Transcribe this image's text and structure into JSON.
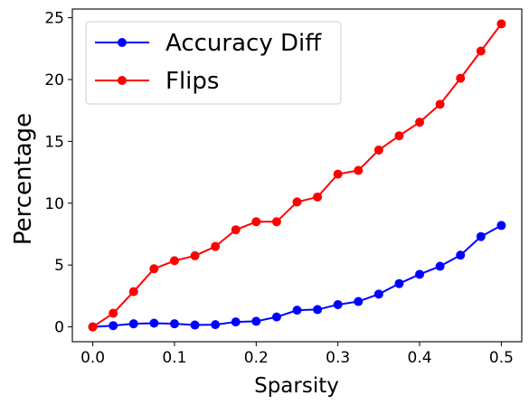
{
  "chart_data": {
    "type": "line",
    "xlabel": "Sparsity",
    "ylabel": "Percentage",
    "xlim": [
      -0.025,
      0.525
    ],
    "ylim": [
      -1.2,
      25.7
    ],
    "xticks": [
      0.0,
      0.1,
      0.2,
      0.3,
      0.4,
      0.5
    ],
    "xtick_labels": [
      "0.0",
      "0.1",
      "0.2",
      "0.3",
      "0.4",
      "0.5"
    ],
    "yticks": [
      0,
      5,
      10,
      15,
      20,
      25
    ],
    "ytick_labels": [
      "0",
      "5",
      "10",
      "15",
      "20",
      "25"
    ],
    "grid": false,
    "legend_position": "top-left",
    "x": [
      0.0,
      0.025,
      0.05,
      0.075,
      0.1,
      0.125,
      0.15,
      0.175,
      0.2,
      0.225,
      0.25,
      0.275,
      0.3,
      0.325,
      0.35,
      0.375,
      0.4,
      0.425,
      0.45,
      0.475,
      0.5
    ],
    "series": [
      {
        "name": "Accuracy Diff",
        "color": "#0000ff",
        "values": [
          0.0,
          0.1,
          0.25,
          0.3,
          0.25,
          0.15,
          0.18,
          0.4,
          0.45,
          0.8,
          1.35,
          1.4,
          1.8,
          2.05,
          2.65,
          3.5,
          4.25,
          4.9,
          5.8,
          7.3,
          8.2
        ]
      },
      {
        "name": "Flips",
        "color": "#ff0000",
        "values": [
          0.0,
          1.1,
          2.85,
          4.7,
          5.35,
          5.75,
          6.5,
          7.85,
          8.5,
          8.5,
          10.1,
          10.5,
          12.35,
          12.65,
          14.3,
          15.45,
          16.55,
          18.0,
          20.1,
          22.3,
          24.5
        ]
      }
    ]
  }
}
